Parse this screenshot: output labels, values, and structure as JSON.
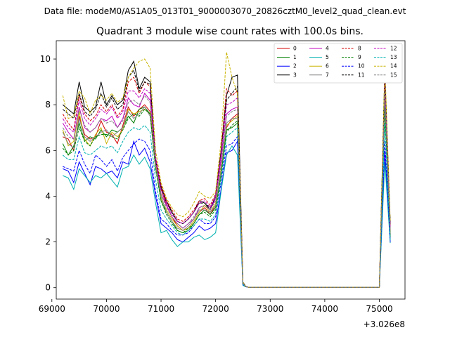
{
  "suptitle": "Data file: modeM0/AS1A05_013T01_9000003070_20826cztM0_level2_quad_clean.evt",
  "chart_data": {
    "type": "line",
    "title": "Quadrant 3 module wise count rates with 100.0s bins.",
    "xlabel": "",
    "ylabel": "",
    "x_offset_label": "+3.026e8",
    "xlim": [
      69080,
      75470
    ],
    "ylim": [
      -0.5,
      10.8
    ],
    "x_ticks": [
      69000,
      70000,
      71000,
      72000,
      73000,
      74000,
      75000
    ],
    "x_tick_labels": [
      "69000",
      "70000",
      "71000",
      "72000",
      "73000",
      "74000",
      "75000"
    ],
    "y_ticks": [
      0,
      2,
      4,
      6,
      8,
      10
    ],
    "y_tick_labels": [
      "0",
      "2",
      "4",
      "6",
      "8",
      "10"
    ],
    "legend_position": "top-right",
    "x": [
      69200,
      69300,
      69400,
      69500,
      69600,
      69700,
      69800,
      69900,
      70000,
      70100,
      70200,
      70300,
      70400,
      70500,
      70600,
      70700,
      70800,
      70900,
      71000,
      71100,
      71200,
      71300,
      71400,
      71500,
      71600,
      71700,
      71800,
      71900,
      72000,
      72100,
      72200,
      72300,
      72400,
      72500,
      72550,
      72600,
      72650,
      72700,
      72800,
      72900,
      73000,
      73100,
      73200,
      73300,
      73400,
      73500,
      73600,
      73700,
      73800,
      73900,
      74000,
      74100,
      74200,
      74300,
      74400,
      74500,
      74600,
      74700,
      74800,
      74900,
      75000,
      75100,
      75200
    ],
    "series": [
      {
        "name": "0",
        "color": "#d40000",
        "dash": false,
        "values": [
          6.6,
          6.5,
          6.0,
          7.5,
          6.7,
          6.5,
          6.6,
          7.3,
          6.8,
          6.7,
          6.3,
          7.1,
          7.9,
          7.5,
          7.8,
          8.0,
          7.7,
          5.5,
          4.3,
          3.6,
          3.1,
          2.7,
          2.5,
          2.6,
          2.9,
          3.3,
          3.5,
          3.2,
          3.6,
          5.2,
          7.0,
          7.4,
          7.6,
          0.2,
          0.05,
          0.02,
          0.02,
          0.02,
          0.02,
          0.02,
          0.02,
          0.02,
          0.02,
          0.02,
          0.02,
          0.02,
          0.02,
          0.02,
          0.02,
          0.02,
          0.02,
          0.02,
          0.02,
          0.02,
          0.02,
          0.02,
          0.02,
          0.02,
          0.02,
          0.02,
          0.02,
          8.5,
          2.3
        ]
      },
      {
        "name": "1",
        "color": "#008000",
        "dash": false,
        "values": [
          6.3,
          5.8,
          6.2,
          7.2,
          6.4,
          6.6,
          6.5,
          6.9,
          6.6,
          6.9,
          6.8,
          7.0,
          7.5,
          7.2,
          7.8,
          7.9,
          7.6,
          5.3,
          3.8,
          3.3,
          2.9,
          2.5,
          2.4,
          2.5,
          2.8,
          3.2,
          3.4,
          3.2,
          3.5,
          5.0,
          6.9,
          7.0,
          7.2,
          0.15,
          0.05,
          0.02,
          0.02,
          0.02,
          0.02,
          0.02,
          0.02,
          0.02,
          0.02,
          0.02,
          0.02,
          0.02,
          0.02,
          0.02,
          0.02,
          0.02,
          0.02,
          0.02,
          0.02,
          0.02,
          0.02,
          0.02,
          0.02,
          0.02,
          0.02,
          0.02,
          0.02,
          8.0,
          2.2
        ]
      },
      {
        "name": "2",
        "color": "#0000ff",
        "dash": false,
        "values": [
          5.2,
          5.1,
          4.6,
          5.5,
          5.0,
          4.5,
          5.3,
          5.2,
          5.0,
          5.1,
          4.8,
          5.5,
          5.4,
          6.4,
          5.8,
          6.1,
          5.5,
          4.0,
          2.8,
          2.6,
          2.4,
          2.1,
          2.0,
          2.2,
          2.4,
          2.7,
          2.5,
          2.6,
          2.8,
          4.3,
          5.9,
          6.0,
          6.4,
          0.12,
          0.04,
          0.02,
          0.02,
          0.02,
          0.02,
          0.02,
          0.02,
          0.02,
          0.02,
          0.02,
          0.02,
          0.02,
          0.02,
          0.02,
          0.02,
          0.02,
          0.02,
          0.02,
          0.02,
          0.02,
          0.02,
          0.02,
          0.02,
          0.02,
          0.02,
          0.02,
          0.02,
          6.0,
          2.0
        ]
      },
      {
        "name": "3",
        "color": "#000000",
        "dash": false,
        "values": [
          8.0,
          7.8,
          7.6,
          9.0,
          7.9,
          7.7,
          7.9,
          9.0,
          8.0,
          8.4,
          8.0,
          8.2,
          9.5,
          9.9,
          8.7,
          9.2,
          9.0,
          5.6,
          4.4,
          3.8,
          3.3,
          2.9,
          2.8,
          3.0,
          3.3,
          3.8,
          3.7,
          3.4,
          4.0,
          6.0,
          8.4,
          9.2,
          9.3,
          0.25,
          0.06,
          0.02,
          0.02,
          0.02,
          0.02,
          0.02,
          0.02,
          0.02,
          0.02,
          0.02,
          0.02,
          0.02,
          0.02,
          0.02,
          0.02,
          0.02,
          0.02,
          0.02,
          0.02,
          0.02,
          0.02,
          0.02,
          0.02,
          0.02,
          0.02,
          0.02,
          0.02,
          9.5,
          2.8
        ]
      },
      {
        "name": "4",
        "color": "#c000c0",
        "dash": false,
        "values": [
          7.2,
          6.8,
          6.5,
          7.9,
          7.0,
          6.8,
          7.0,
          7.4,
          7.3,
          7.5,
          7.0,
          7.4,
          8.3,
          8.0,
          7.9,
          8.5,
          8.2,
          5.6,
          4.1,
          3.6,
          3.1,
          2.8,
          2.6,
          2.8,
          3.0,
          3.5,
          3.6,
          3.4,
          3.9,
          5.6,
          7.6,
          7.8,
          7.9,
          0.2,
          0.05,
          0.02,
          0.02,
          0.02,
          0.02,
          0.02,
          0.02,
          0.02,
          0.02,
          0.02,
          0.02,
          0.02,
          0.02,
          0.02,
          0.02,
          0.02,
          0.02,
          0.02,
          0.02,
          0.02,
          0.02,
          0.02,
          0.02,
          0.02,
          0.02,
          0.02,
          0.02,
          8.8,
          2.5
        ]
      },
      {
        "name": "5",
        "color": "#00b0b0",
        "dash": false,
        "values": [
          4.9,
          4.8,
          4.3,
          5.2,
          4.9,
          4.6,
          4.9,
          4.8,
          5.0,
          4.7,
          4.4,
          5.2,
          5.3,
          5.8,
          5.4,
          5.7,
          5.2,
          3.7,
          2.4,
          2.5,
          2.1,
          1.8,
          2.0,
          2.0,
          2.2,
          2.3,
          2.1,
          2.2,
          2.4,
          4.2,
          5.8,
          6.2,
          5.8,
          0.1,
          0.04,
          0.02,
          0.02,
          0.02,
          0.02,
          0.02,
          0.02,
          0.02,
          0.02,
          0.02,
          0.02,
          0.02,
          0.02,
          0.02,
          0.02,
          0.02,
          0.02,
          0.02,
          0.02,
          0.02,
          0.02,
          0.02,
          0.02,
          0.02,
          0.02,
          0.02,
          0.02,
          5.5,
          1.95
        ]
      },
      {
        "name": "6",
        "color": "#c8b400",
        "dash": false,
        "values": [
          6.9,
          6.2,
          6.4,
          7.7,
          6.5,
          6.2,
          6.7,
          7.0,
          6.3,
          6.8,
          6.6,
          6.9,
          7.8,
          7.6,
          7.7,
          7.8,
          7.6,
          5.4,
          3.9,
          3.4,
          3.0,
          2.7,
          2.5,
          2.6,
          2.9,
          3.3,
          3.6,
          3.3,
          3.7,
          5.2,
          7.1,
          7.3,
          7.5,
          0.18,
          0.05,
          0.02,
          0.02,
          0.02,
          0.02,
          0.02,
          0.02,
          0.02,
          0.02,
          0.02,
          0.02,
          0.02,
          0.02,
          0.02,
          0.02,
          0.02,
          0.02,
          0.02,
          0.02,
          0.02,
          0.02,
          0.02,
          0.02,
          0.02,
          0.02,
          0.02,
          0.02,
          8.2,
          2.4
        ]
      },
      {
        "name": "7",
        "color": "#808080",
        "dash": false,
        "values": [
          6.8,
          6.3,
          6.1,
          7.4,
          6.6,
          6.4,
          6.6,
          6.8,
          6.9,
          6.6,
          6.8,
          7.0,
          7.7,
          7.4,
          7.6,
          7.9,
          7.5,
          5.2,
          4.0,
          3.3,
          2.9,
          2.6,
          2.5,
          2.7,
          3.0,
          3.4,
          3.4,
          3.3,
          3.6,
          5.1,
          7.2,
          7.4,
          7.4,
          0.18,
          0.05,
          0.02,
          0.02,
          0.02,
          0.02,
          0.02,
          0.02,
          0.02,
          0.02,
          0.02,
          0.02,
          0.02,
          0.02,
          0.02,
          0.02,
          0.02,
          0.02,
          0.02,
          0.02,
          0.02,
          0.02,
          0.02,
          0.02,
          0.02,
          0.02,
          0.02,
          0.02,
          8.0,
          2.3
        ]
      },
      {
        "name": "8",
        "color": "#d40000",
        "dash": true,
        "values": [
          7.6,
          7.2,
          6.9,
          8.4,
          7.6,
          7.3,
          7.5,
          8.0,
          7.7,
          8.0,
          7.5,
          7.8,
          9.0,
          9.2,
          8.5,
          9.0,
          8.8,
          5.7,
          4.5,
          3.8,
          3.4,
          3.0,
          2.9,
          3.1,
          3.4,
          3.8,
          3.9,
          3.6,
          4.1,
          6.0,
          8.7,
          8.4,
          8.6,
          0.22,
          0.06,
          0.02,
          0.02,
          0.02,
          0.02,
          0.02,
          0.02,
          0.02,
          0.02,
          0.02,
          0.02,
          0.02,
          0.02,
          0.02,
          0.02,
          0.02,
          0.02,
          0.02,
          0.02,
          0.02,
          0.02,
          0.02,
          0.02,
          0.02,
          0.02,
          0.02,
          0.02,
          9.3,
          2.7
        ]
      },
      {
        "name": "9",
        "color": "#008000",
        "dash": true,
        "values": [
          6.1,
          5.8,
          6.0,
          7.0,
          6.4,
          6.2,
          6.6,
          6.7,
          6.7,
          6.6,
          6.5,
          6.9,
          7.4,
          7.6,
          7.5,
          7.8,
          7.6,
          5.2,
          3.8,
          3.2,
          2.8,
          2.5,
          2.4,
          2.6,
          2.8,
          3.2,
          3.3,
          3.1,
          3.4,
          4.9,
          6.8,
          7.1,
          7.3,
          0.16,
          0.05,
          0.02,
          0.02,
          0.02,
          0.02,
          0.02,
          0.02,
          0.02,
          0.02,
          0.02,
          0.02,
          0.02,
          0.02,
          0.02,
          0.02,
          0.02,
          0.02,
          0.02,
          0.02,
          0.02,
          0.02,
          0.02,
          0.02,
          0.02,
          0.02,
          0.02,
          0.02,
          7.9,
          2.2
        ]
      },
      {
        "name": "10",
        "color": "#0000ff",
        "dash": true,
        "values": [
          5.3,
          5.2,
          5.1,
          6.0,
          5.4,
          5.0,
          5.8,
          5.6,
          5.3,
          5.6,
          5.1,
          5.7,
          6.0,
          6.3,
          6.5,
          6.4,
          6.0,
          4.2,
          3.0,
          2.8,
          2.5,
          2.3,
          2.3,
          2.4,
          2.7,
          3.0,
          2.8,
          2.8,
          3.1,
          4.6,
          6.2,
          6.3,
          6.6,
          0.13,
          0.04,
          0.02,
          0.02,
          0.02,
          0.02,
          0.02,
          0.02,
          0.02,
          0.02,
          0.02,
          0.02,
          0.02,
          0.02,
          0.02,
          0.02,
          0.02,
          0.02,
          0.02,
          0.02,
          0.02,
          0.02,
          0.02,
          0.02,
          0.02,
          0.02,
          0.02,
          0.02,
          6.4,
          2.0
        ]
      },
      {
        "name": "11",
        "color": "#000000",
        "dash": true,
        "values": [
          7.8,
          7.6,
          7.4,
          8.5,
          7.7,
          7.5,
          7.8,
          8.5,
          7.9,
          8.3,
          7.8,
          8.0,
          9.2,
          9.5,
          8.6,
          9.0,
          8.9,
          5.6,
          4.4,
          3.7,
          3.3,
          2.9,
          2.8,
          3.0,
          3.3,
          3.7,
          3.7,
          3.5,
          4.0,
          5.9,
          8.2,
          8.5,
          8.8,
          0.24,
          0.06,
          0.02,
          0.02,
          0.02,
          0.02,
          0.02,
          0.02,
          0.02,
          0.02,
          0.02,
          0.02,
          0.02,
          0.02,
          0.02,
          0.02,
          0.02,
          0.02,
          0.02,
          0.02,
          0.02,
          0.02,
          0.02,
          0.02,
          0.02,
          0.02,
          0.02,
          0.02,
          9.4,
          2.8
        ]
      },
      {
        "name": "12",
        "color": "#c000c0",
        "dash": true,
        "values": [
          7.4,
          7.0,
          6.8,
          8.2,
          7.4,
          7.1,
          7.4,
          7.8,
          7.6,
          7.9,
          7.4,
          7.7,
          8.6,
          8.6,
          8.3,
          8.7,
          8.5,
          5.7,
          4.3,
          3.7,
          3.2,
          2.9,
          2.8,
          3.0,
          3.3,
          3.7,
          3.8,
          3.5,
          4.0,
          5.8,
          8.0,
          8.1,
          8.3,
          0.21,
          0.06,
          0.02,
          0.02,
          0.02,
          0.02,
          0.02,
          0.02,
          0.02,
          0.02,
          0.02,
          0.02,
          0.02,
          0.02,
          0.02,
          0.02,
          0.02,
          0.02,
          0.02,
          0.02,
          0.02,
          0.02,
          0.02,
          0.02,
          0.02,
          0.02,
          0.02,
          0.02,
          9.0,
          2.6
        ]
      },
      {
        "name": "13",
        "color": "#00b0b0",
        "dash": true,
        "values": [
          5.8,
          5.6,
          5.6,
          6.6,
          5.9,
          5.8,
          6.0,
          6.2,
          6.1,
          6.2,
          5.9,
          6.4,
          6.8,
          7.0,
          6.9,
          7.1,
          6.8,
          4.7,
          3.4,
          3.0,
          2.7,
          2.4,
          2.3,
          2.5,
          2.7,
          3.0,
          3.0,
          2.9,
          3.2,
          4.7,
          6.6,
          6.8,
          7.0,
          0.15,
          0.05,
          0.02,
          0.02,
          0.02,
          0.02,
          0.02,
          0.02,
          0.02,
          0.02,
          0.02,
          0.02,
          0.02,
          0.02,
          0.02,
          0.02,
          0.02,
          0.02,
          0.02,
          0.02,
          0.02,
          0.02,
          0.02,
          0.02,
          0.02,
          0.02,
          0.02,
          0.02,
          7.2,
          2.1
        ]
      },
      {
        "name": "14",
        "color": "#c8b400",
        "dash": true,
        "values": [
          8.4,
          7.4,
          7.5,
          8.6,
          8.3,
          7.6,
          8.2,
          8.4,
          8.2,
          8.5,
          8.1,
          8.3,
          9.2,
          9.6,
          9.9,
          10.0,
          9.6,
          6.0,
          4.6,
          3.9,
          3.5,
          3.2,
          3.1,
          3.3,
          3.7,
          4.2,
          4.0,
          3.9,
          4.2,
          6.4,
          10.3,
          9.2,
          8.5,
          0.24,
          0.06,
          0.02,
          0.02,
          0.02,
          0.02,
          0.02,
          0.02,
          0.02,
          0.02,
          0.02,
          0.02,
          0.02,
          0.02,
          0.02,
          0.02,
          0.02,
          0.02,
          0.02,
          0.02,
          0.02,
          0.02,
          0.02,
          0.02,
          0.02,
          0.02,
          0.02,
          0.02,
          9.8,
          2.9
        ]
      },
      {
        "name": "15",
        "color": "#808080",
        "dash": true,
        "values": [
          7.0,
          6.6,
          6.5,
          7.8,
          7.1,
          6.8,
          7.0,
          7.4,
          7.2,
          7.3,
          7.0,
          7.3,
          8.1,
          8.2,
          8.0,
          8.4,
          8.1,
          5.4,
          4.1,
          3.5,
          3.1,
          2.8,
          2.6,
          2.8,
          3.1,
          3.5,
          3.6,
          3.4,
          3.8,
          5.4,
          7.5,
          7.7,
          7.8,
          0.2,
          0.05,
          0.02,
          0.02,
          0.02,
          0.02,
          0.02,
          0.02,
          0.02,
          0.02,
          0.02,
          0.02,
          0.02,
          0.02,
          0.02,
          0.02,
          0.02,
          0.02,
          0.02,
          0.02,
          0.02,
          0.02,
          0.02,
          0.02,
          0.02,
          0.02,
          0.02,
          0.02,
          8.6,
          2.5
        ]
      }
    ]
  }
}
